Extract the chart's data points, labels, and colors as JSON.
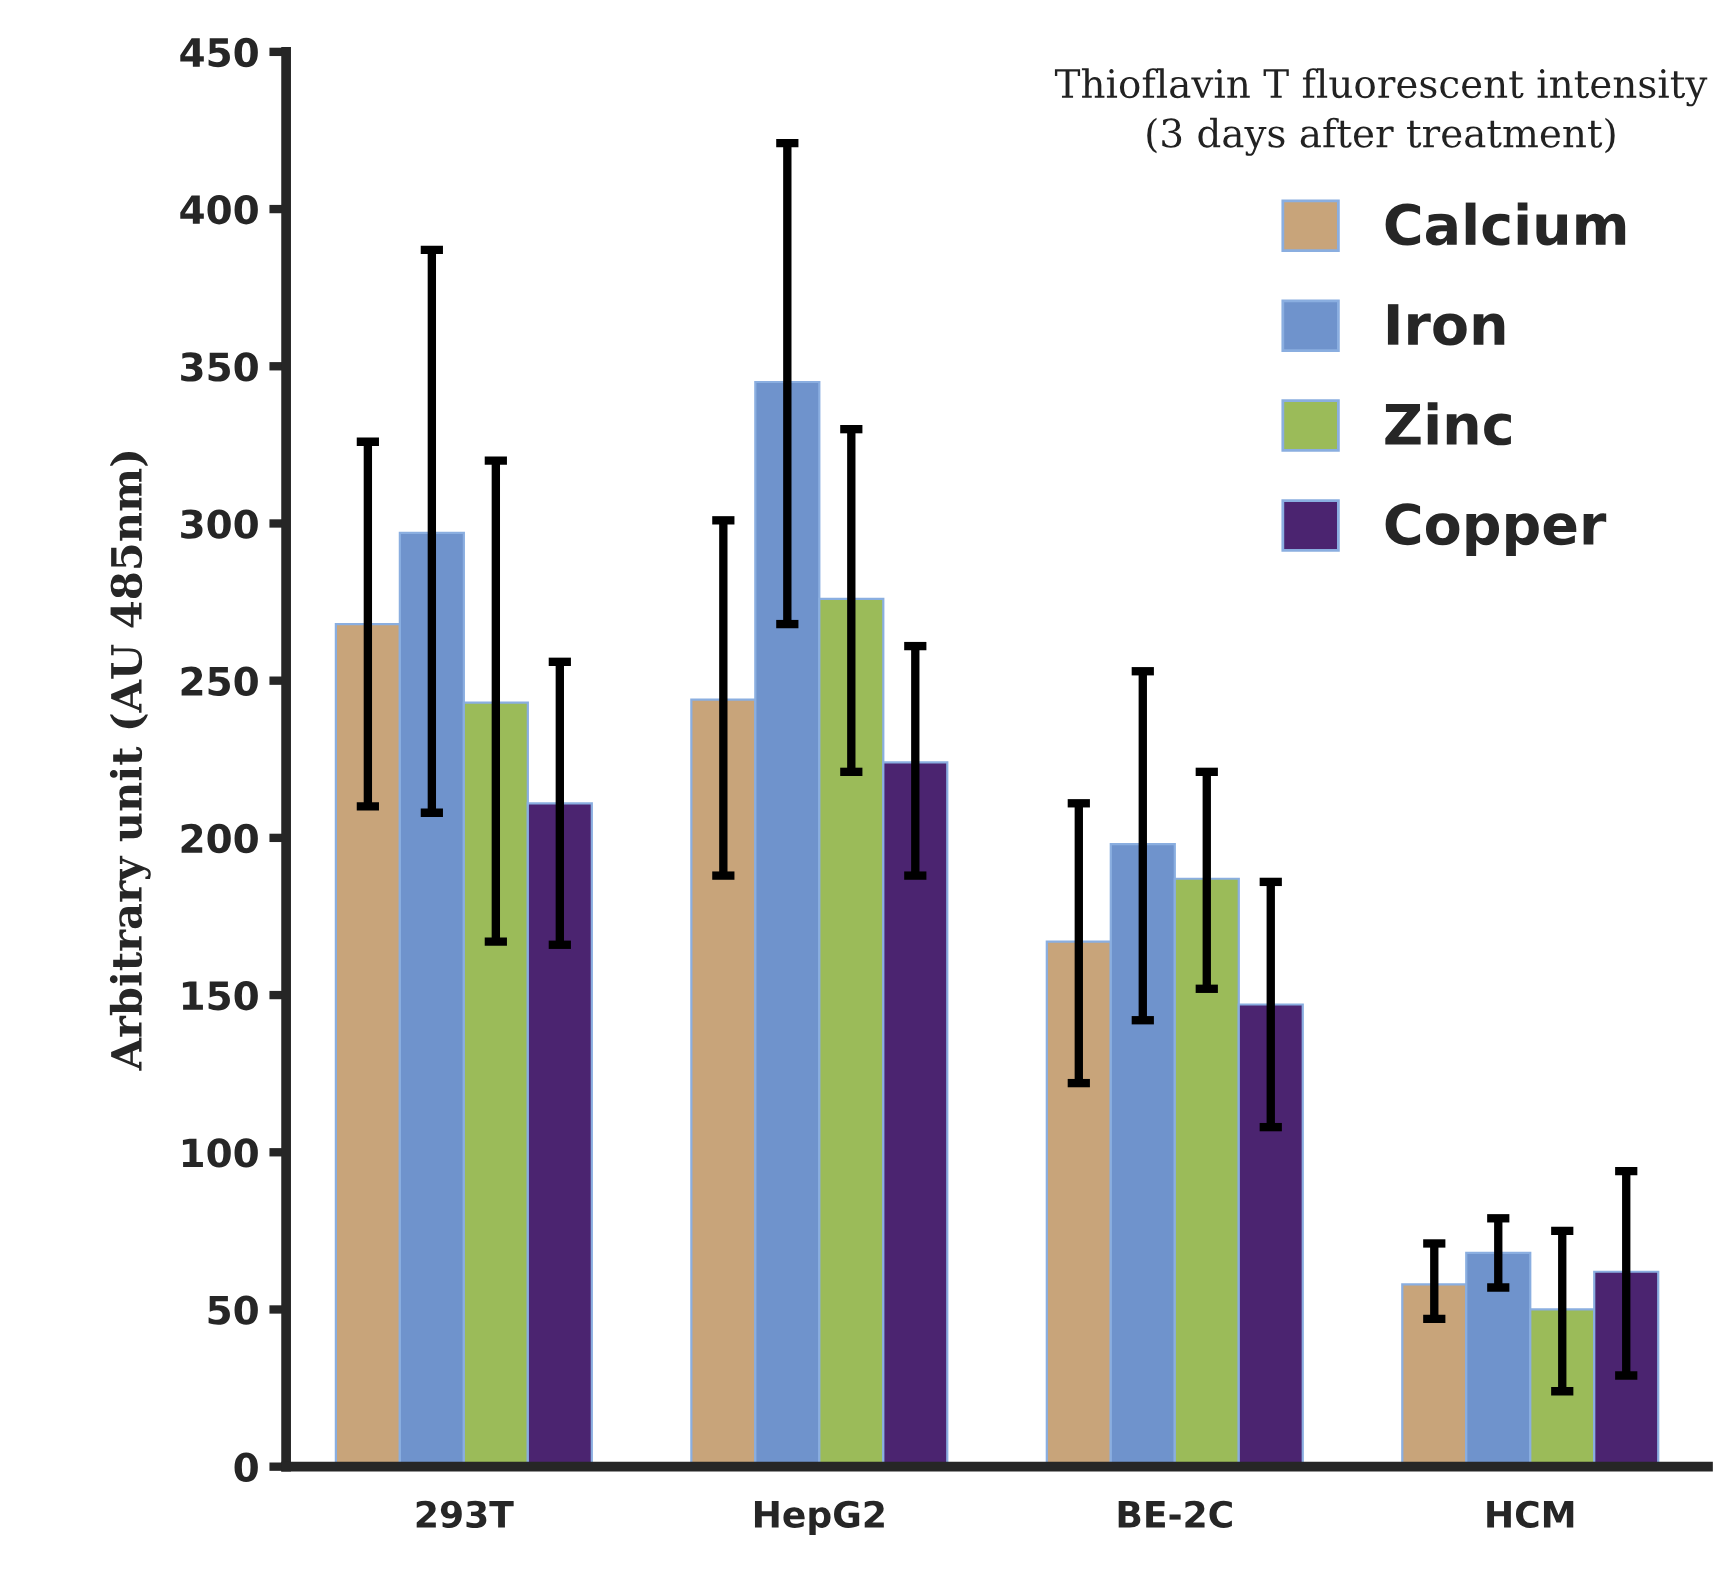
{
  "chart_data": {
    "type": "bar",
    "title": "Thioflavin T fluorescent intensity",
    "subtitle": "(3 days after treatment)",
    "ylabel": "Arbitrary unit (AU 485nm)",
    "categories": [
      "293T",
      "HepG2",
      "BE-2C",
      "HCM"
    ],
    "series": [
      {
        "name": "Calcium",
        "color": "#c8a47a",
        "values": [
          268,
          244,
          167,
          58
        ],
        "errors": [
          [
            210,
            326
          ],
          [
            188,
            301
          ],
          [
            122,
            211
          ],
          [
            47,
            71
          ]
        ]
      },
      {
        "name": "Iron",
        "color": "#6f93cc",
        "values": [
          297,
          345,
          198,
          68
        ],
        "errors": [
          [
            208,
            387
          ],
          [
            268,
            421
          ],
          [
            142,
            253
          ],
          [
            57,
            79
          ]
        ]
      },
      {
        "name": "Zinc",
        "color": "#9bbb59",
        "values": [
          243,
          276,
          187,
          50
        ],
        "errors": [
          [
            167,
            320
          ],
          [
            221,
            330
          ],
          [
            152,
            221
          ],
          [
            24,
            75
          ]
        ]
      },
      {
        "name": "Copper",
        "color": "#4b2470",
        "values": [
          211,
          224,
          147,
          62
        ],
        "errors": [
          [
            166,
            256
          ],
          [
            188,
            261
          ],
          [
            108,
            186
          ],
          [
            29,
            94
          ]
        ]
      }
    ],
    "ylim": [
      0,
      450
    ],
    "yticks": [
      0,
      50,
      100,
      150,
      200,
      250,
      300,
      350,
      400,
      450
    ],
    "grid": false,
    "legend": "top right"
  }
}
